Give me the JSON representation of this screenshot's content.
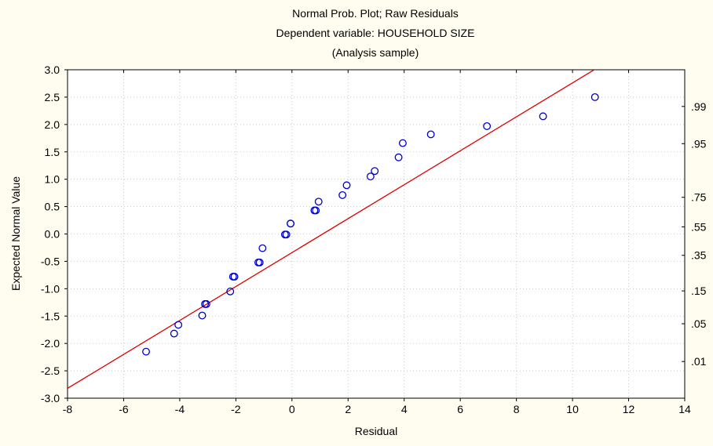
{
  "chart_data": {
    "type": "scatter",
    "title": [
      "Normal Prob. Plot; Raw Residuals",
      "Dependent variable: HOUSEHOLD SIZE",
      "(Analysis sample)"
    ],
    "xlabel": "Residual",
    "ylabel": "Expected Normal Value",
    "xlim": [
      -8,
      14
    ],
    "ylim": [
      -3,
      3
    ],
    "x_ticks": [
      -8,
      -6,
      -4,
      -2,
      0,
      2,
      4,
      6,
      8,
      10,
      12,
      14
    ],
    "x_tick_labels": [
      "-8",
      "-6",
      "-4",
      "-2",
      "0",
      "2",
      "4",
      "6",
      "8",
      "10",
      "12",
      "14"
    ],
    "y_ticks": [
      -3,
      -2.5,
      -2,
      -1.5,
      -1,
      -0.5,
      0,
      0.5,
      1,
      1.5,
      2,
      2.5,
      3
    ],
    "y_tick_labels": [
      "-3.0",
      "-2.5",
      "-2.0",
      "-1.5",
      "-1.0",
      "-0.5",
      "0.0",
      "0.5",
      "1.0",
      "1.5",
      "2.0",
      "2.5",
      "3.0"
    ],
    "right_axis": {
      "positions": [
        2.33,
        1.65,
        0.67,
        0.13,
        -0.39,
        -1.04,
        -1.64,
        -2.33
      ],
      "labels": [
        ".99",
        ".95",
        ".75",
        ".55",
        ".35",
        ".15",
        ".05",
        ".01"
      ]
    },
    "grid": true,
    "series": [
      {
        "color": "#0000cc",
        "x": [
          -5.2,
          -4.2,
          -4.05,
          -3.2,
          -3.05,
          -3.1,
          -2.2,
          -2.1,
          -2.05,
          -1.2,
          -1.15,
          -1.05,
          -0.25,
          -0.2,
          -0.05,
          -0.05,
          0.8,
          0.85,
          0.95,
          1.8,
          1.95,
          2.8,
          2.95,
          3.8,
          3.95,
          4.95,
          6.95,
          8.95,
          10.8
        ],
        "y": [
          -2.15,
          -1.82,
          -1.66,
          -1.49,
          -1.28,
          -1.28,
          -1.05,
          -0.78,
          -0.78,
          -0.52,
          -0.52,
          -0.26,
          -0.01,
          -0.01,
          0.19,
          0.19,
          0.43,
          0.43,
          0.59,
          0.71,
          0.89,
          1.05,
          1.15,
          1.4,
          1.66,
          1.82,
          1.97,
          2.15,
          2.5
        ]
      }
    ],
    "fit_line": {
      "color": "#dd0000",
      "x": [
        -8,
        14
      ],
      "y": [
        -2.82,
        4.0
      ]
    }
  }
}
